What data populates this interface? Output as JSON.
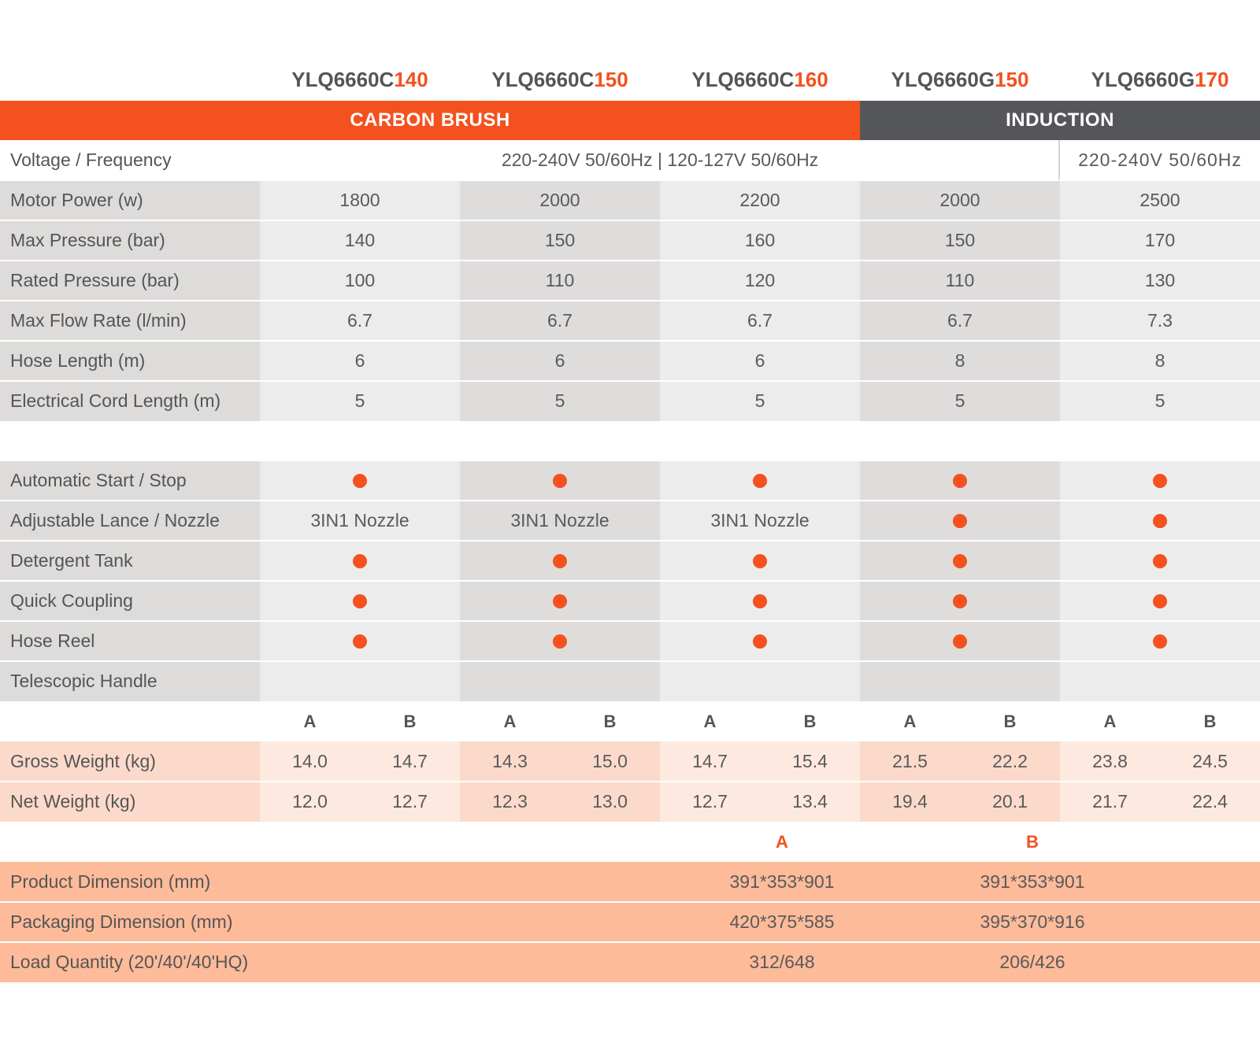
{
  "colors": {
    "accent": "#f4511e",
    "induction_banner": "#555659",
    "label_bg": "#dedcdb",
    "cell_light": "#edecec",
    "cell_dark": "#dfdcdc",
    "weight_label_bg": "#fcdacb",
    "weight_light": "#fde9df",
    "weight_dark": "#fcdacb",
    "dim_bg": "#fdbb9a"
  },
  "models": [
    {
      "prefix": "YLQ6660C",
      "suffix": "140"
    },
    {
      "prefix": "YLQ6660C",
      "suffix": "150"
    },
    {
      "prefix": "YLQ6660C",
      "suffix": "160"
    },
    {
      "prefix": "YLQ6660G",
      "suffix": "150"
    },
    {
      "prefix": "YLQ6660G",
      "suffix": "170"
    }
  ],
  "banners": {
    "carbon": "CARBON BRUSH",
    "induction": "INDUCTION"
  },
  "voltage": {
    "label": "Voltage / Frequency",
    "carbon_value": "220-240V 50/60Hz | 120-127V 50/60Hz",
    "induction_value": "220-240V 50/60Hz"
  },
  "specs": [
    {
      "label": "Motor Power (w)",
      "values": [
        "1800",
        "2000",
        "2200",
        "2000",
        "2500"
      ]
    },
    {
      "label": "Max Pressure (bar)",
      "values": [
        "140",
        "150",
        "160",
        "150",
        "170"
      ]
    },
    {
      "label": "Rated Pressure (bar)",
      "values": [
        "100",
        "110",
        "120",
        "110",
        "130"
      ]
    },
    {
      "label": "Max Flow Rate (l/min)",
      "values": [
        "6.7",
        "6.7",
        "6.7",
        "6.7",
        "7.3"
      ]
    },
    {
      "label": "Hose Length (m)",
      "values": [
        "6",
        "6",
        "6",
        "8",
        "8"
      ]
    },
    {
      "label": "Electrical Cord Length (m)",
      "values": [
        "5",
        "5",
        "5",
        "5",
        "5"
      ]
    }
  ],
  "features": [
    {
      "label": "Automatic Start / Stop",
      "values": [
        "dot",
        "dot",
        "dot",
        "dot",
        "dot"
      ]
    },
    {
      "label": "Adjustable Lance / Nozzle",
      "values": [
        "3IN1 Nozzle",
        "3IN1 Nozzle",
        "3IN1 Nozzle",
        "dot",
        "dot"
      ]
    },
    {
      "label": "Detergent Tank",
      "values": [
        "dot",
        "dot",
        "dot",
        "dot",
        "dot"
      ]
    },
    {
      "label": "Quick Coupling",
      "values": [
        "dot",
        "dot",
        "dot",
        "dot",
        "dot"
      ]
    },
    {
      "label": "Hose Reel",
      "values": [
        "dot",
        "dot",
        "dot",
        "dot",
        "dot"
      ]
    },
    {
      "label": "Telescopic Handle",
      "values": [
        "",
        "",
        "",
        "",
        ""
      ]
    }
  ],
  "ab_headers": [
    "A",
    "B",
    "A",
    "B",
    "A",
    "B",
    "A",
    "B",
    "A",
    "B"
  ],
  "weights": [
    {
      "label": "Gross Weight (kg)",
      "values": [
        "14.0",
        "14.7",
        "14.3",
        "15.0",
        "14.7",
        "15.4",
        "21.5",
        "22.2",
        "23.8",
        "24.5"
      ]
    },
    {
      "label": "Net Weight (kg)",
      "values": [
        "12.0",
        "12.7",
        "12.3",
        "13.0",
        "12.7",
        "13.4",
        "19.4",
        "20.1",
        "21.7",
        "22.4"
      ]
    }
  ],
  "dimension_headers": [
    "A",
    "B"
  ],
  "dimensions": [
    {
      "label": "Product Dimension (mm)",
      "a": "391*353*901",
      "b": "391*353*901"
    },
    {
      "label": "Packaging Dimension (mm)",
      "a": "420*375*585",
      "b": "395*370*916"
    },
    {
      "label": "Load Quantity (20'/40'/40'HQ)",
      "a": "312/648",
      "b": "206/426"
    }
  ]
}
